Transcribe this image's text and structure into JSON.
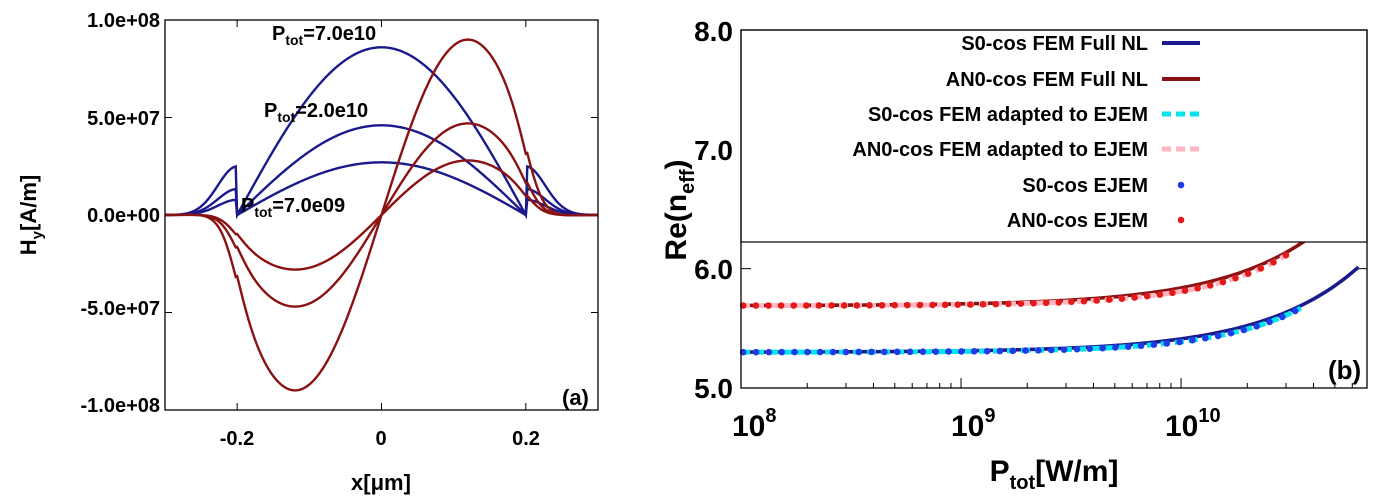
{
  "chart_data": [
    {
      "panel": "(a)",
      "type": "line",
      "xlabel": "x[μm]",
      "ylabel": "Hy[A/m]",
      "xlim": [
        -0.3,
        0.3
      ],
      "ylim": [
        -100000000,
        100000000
      ],
      "x_ticks": [
        -0.2,
        0,
        0.2
      ],
      "x_tick_labels": [
        "-0.2",
        "0",
        "0.2"
      ],
      "y_ticks": [
        -100000000,
        -50000000,
        0,
        50000000,
        100000000
      ],
      "y_tick_labels": [
        "-1.0e+08",
        "-5.0e+07",
        "0.0e+00",
        "5.0e+07",
        "1.0e+08"
      ],
      "annotations": [
        {
          "text_main": "P",
          "text_sub": "tot",
          "text_rest": "=7.0e10"
        },
        {
          "text_main": "P",
          "text_sub": "tot",
          "text_rest": "=2.0e10"
        },
        {
          "text_main": "P",
          "text_sub": "tot",
          "text_rest": "=7.0e09"
        }
      ],
      "series": [
        {
          "kind": "symmetric",
          "color": "#1a1a8c",
          "peak": 86000000
        },
        {
          "kind": "symmetric",
          "color": "#1a1a8c",
          "peak": 46000000
        },
        {
          "kind": "symmetric",
          "color": "#1a1a8c",
          "peak": 27000000
        },
        {
          "kind": "antisymmetric",
          "color": "#8b1212",
          "peak": 90000000
        },
        {
          "kind": "antisymmetric",
          "color": "#8b1212",
          "peak": 47000000
        },
        {
          "kind": "antisymmetric",
          "color": "#8b1212",
          "peak": 28000000
        }
      ]
    },
    {
      "panel": "(b)",
      "type": "line",
      "xlabel_main": "P",
      "xlabel_sub": "tot",
      "xlabel_rest": "[W/m]",
      "ylabel_main": "Re(n",
      "ylabel_sub": "eff",
      "ylabel_rest": ")",
      "xscale": "log",
      "xlim": [
        100000000,
        70000000000
      ],
      "ylim": [
        5.0,
        8.0
      ],
      "x_tick_labels": [
        {
          "base": "10",
          "exp": "8"
        },
        {
          "base": "10",
          "exp": "9"
        },
        {
          "base": "10",
          "exp": "10"
        }
      ],
      "y_ticks": [
        5.0,
        6.0,
        7.0,
        8.0
      ],
      "y_tick_labels": [
        "5.0",
        "6.0",
        "7.0",
        "8.0"
      ],
      "legend_position": "top-left",
      "legend": [
        {
          "label": "S0-cos FEM Full NL",
          "style": "solid",
          "color": "#1a1a8c"
        },
        {
          "label": "AN0-cos FEM Full NL",
          "style": "solid",
          "color": "#8b1212"
        },
        {
          "label": "S0-cos FEM adapted to EJEM",
          "style": "dashed",
          "color": "#00e5ee"
        },
        {
          "label": "AN0-cos FEM adapted to EJEM",
          "style": "dashed",
          "color": "#ffb6c1"
        },
        {
          "label": "S0-cos EJEM",
          "style": "dots",
          "color": "#1e3ce6"
        },
        {
          "label": "AN0-cos EJEM",
          "style": "dots",
          "color": "#e41a1a"
        }
      ],
      "series": [
        {
          "name": "S0-cos FEM Full NL",
          "base": 5.3,
          "k": 0.78,
          "xmax": 64000000000
        },
        {
          "name": "AN0-cos FEM Full NL",
          "base": 5.69,
          "k": 1.04,
          "xmax": 64000000000
        },
        {
          "name": "S0-cos FEM adapted to EJEM",
          "base": 5.3,
          "k": 0.82,
          "p": 1.15,
          "xmax": 35000000000
        },
        {
          "name": "AN0-cos FEM adapted to EJEM",
          "base": 5.69,
          "k": 1.12,
          "p": 1.15,
          "xmax": 32000000000
        },
        {
          "name": "S0-cos EJEM",
          "base": 5.3,
          "k": 0.82,
          "p": 1.15,
          "xmax": 33000000000,
          "n": 44
        },
        {
          "name": "AN0-cos EJEM",
          "base": 5.69,
          "k": 1.12,
          "p": 1.15,
          "xmax": 30000000000,
          "n": 44
        }
      ]
    }
  ]
}
